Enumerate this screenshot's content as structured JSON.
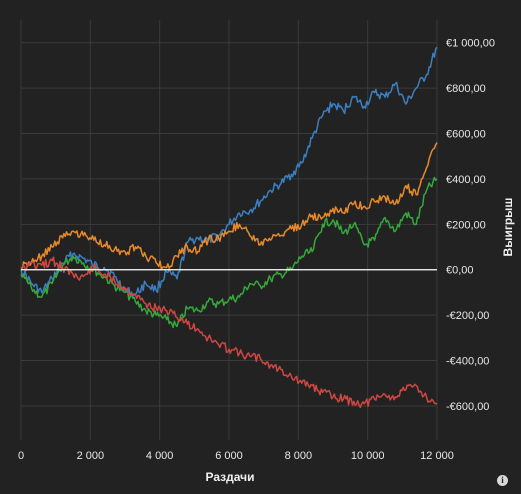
{
  "chart_data": {
    "type": "line",
    "xlabel": "Раздачи",
    "ylabel": "Выигрыш",
    "xlim": [
      0,
      12000
    ],
    "ylim": [
      -750,
      1100
    ],
    "x_ticks": [
      {
        "value": 0,
        "label": "0"
      },
      {
        "value": 2000,
        "label": "2 000"
      },
      {
        "value": 4000,
        "label": "4 000"
      },
      {
        "value": 6000,
        "label": "6 000"
      },
      {
        "value": 8000,
        "label": "8 000"
      },
      {
        "value": 10000,
        "label": "10 000"
      },
      {
        "value": 12000,
        "label": "12 000"
      }
    ],
    "y_ticks": [
      {
        "value": 1000,
        "label": "€1 000,00"
      },
      {
        "value": 800,
        "label": "€800,00"
      },
      {
        "value": 600,
        "label": "€600,00"
      },
      {
        "value": 400,
        "label": "€400,00"
      },
      {
        "value": 200,
        "label": "€200,00"
      },
      {
        "value": 0,
        "label": "€0,00"
      },
      {
        "value": -200,
        "label": "-€200,00"
      },
      {
        "value": -400,
        "label": "-€400,00"
      },
      {
        "value": -600,
        "label": "-€600,00"
      }
    ],
    "grid": true,
    "legend": "none",
    "series": [
      {
        "color": "#3c7fc0",
        "x": [
          0,
          300,
          600,
          900,
          1200,
          1500,
          1800,
          2100,
          2400,
          2700,
          3000,
          3300,
          3600,
          3900,
          4200,
          4500,
          4800,
          5100,
          5400,
          5700,
          6000,
          6300,
          6600,
          6900,
          7200,
          7500,
          7800,
          8100,
          8400,
          8700,
          9000,
          9300,
          9600,
          9900,
          10200,
          10500,
          10800,
          11100,
          11400,
          11700,
          12000
        ],
        "values": [
          0,
          -60,
          -100,
          -40,
          30,
          70,
          50,
          20,
          10,
          -30,
          -90,
          -110,
          -60,
          -90,
          -10,
          -40,
          120,
          140,
          130,
          150,
          200,
          250,
          260,
          300,
          350,
          380,
          420,
          470,
          580,
          680,
          730,
          700,
          760,
          720,
          780,
          760,
          820,
          730,
          800,
          860,
          980
        ]
      },
      {
        "color": "#e88a28",
        "x": [
          0,
          300,
          600,
          900,
          1200,
          1500,
          1800,
          2100,
          2400,
          2700,
          3000,
          3300,
          3600,
          3900,
          4200,
          4500,
          4800,
          5100,
          5400,
          5700,
          6000,
          6300,
          6600,
          6900,
          7200,
          7500,
          7800,
          8100,
          8400,
          8700,
          9000,
          9300,
          9600,
          9900,
          10200,
          10500,
          10800,
          11100,
          11400,
          11700,
          12000
        ],
        "values": [
          10,
          30,
          60,
          100,
          140,
          170,
          150,
          130,
          110,
          90,
          80,
          100,
          60,
          30,
          10,
          60,
          100,
          80,
          130,
          140,
          170,
          200,
          150,
          110,
          130,
          150,
          180,
          200,
          240,
          230,
          270,
          250,
          290,
          280,
          300,
          320,
          290,
          370,
          330,
          450,
          560
        ]
      },
      {
        "color": "#35a83a",
        "x": [
          0,
          300,
          600,
          900,
          1200,
          1500,
          1800,
          2100,
          2400,
          2700,
          3000,
          3300,
          3600,
          3900,
          4200,
          4500,
          4800,
          5100,
          5400,
          5700,
          6000,
          6300,
          6600,
          6900,
          7200,
          7500,
          7800,
          8100,
          8400,
          8700,
          9000,
          9300,
          9600,
          9900,
          10200,
          10500,
          10800,
          11100,
          11400,
          11700,
          12000
        ],
        "values": [
          -20,
          -80,
          -120,
          -60,
          20,
          60,
          30,
          0,
          -30,
          -70,
          -100,
          -140,
          -180,
          -200,
          -220,
          -250,
          -170,
          -180,
          -140,
          -150,
          -130,
          -120,
          -60,
          -70,
          -40,
          -20,
          0,
          60,
          80,
          200,
          220,
          160,
          200,
          110,
          130,
          230,
          170,
          250,
          200,
          350,
          400
        ]
      },
      {
        "color": "#cf4742",
        "x": [
          0,
          300,
          600,
          900,
          1200,
          1500,
          1800,
          2100,
          2400,
          2700,
          3000,
          3300,
          3600,
          3900,
          4200,
          4500,
          4800,
          5100,
          5400,
          5700,
          6000,
          6300,
          6600,
          6900,
          7200,
          7500,
          7800,
          8100,
          8400,
          8700,
          9000,
          9300,
          9600,
          9900,
          10200,
          10500,
          10800,
          11100,
          11400,
          11700,
          12000
        ],
        "values": [
          0,
          30,
          20,
          40,
          10,
          -20,
          -30,
          10,
          -20,
          -50,
          -80,
          -110,
          -150,
          -170,
          -180,
          -210,
          -240,
          -260,
          -300,
          -330,
          -350,
          -370,
          -380,
          -390,
          -420,
          -440,
          -470,
          -500,
          -510,
          -540,
          -560,
          -570,
          -580,
          -590,
          -570,
          -550,
          -560,
          -530,
          -510,
          -560,
          -590
        ]
      }
    ]
  }
}
